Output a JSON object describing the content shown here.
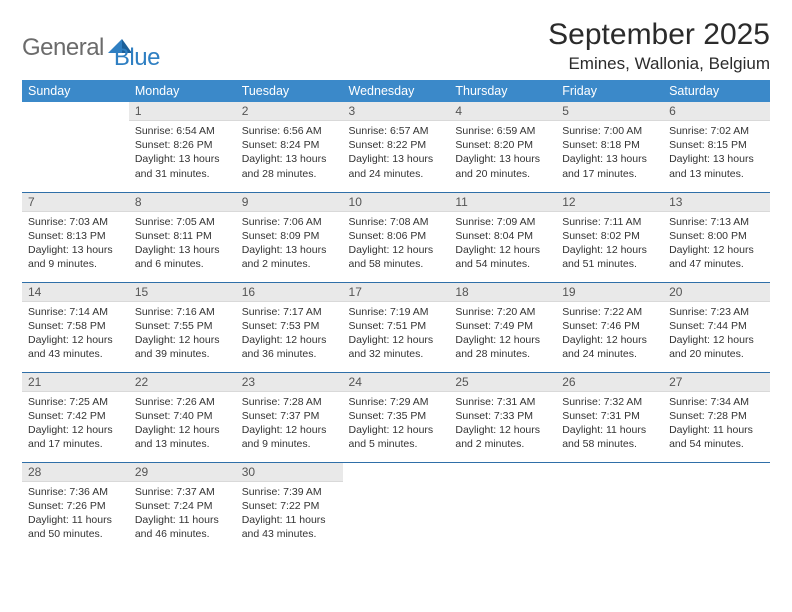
{
  "brand": {
    "name_gray": "General",
    "name_blue": "Blue"
  },
  "title": "September 2025",
  "location": "Emines, Wallonia, Belgium",
  "colors": {
    "header_bg": "#3b89c9",
    "header_text": "#ffffff",
    "daynum_bg": "#e9e9e9",
    "row_divider": "#2f6fa8",
    "logo_gray": "#6b6b6b",
    "logo_blue": "#2f7fc2"
  },
  "typography": {
    "title_fontsize": 30,
    "location_fontsize": 17,
    "header_fontsize": 12.5,
    "daynum_fontsize": 12,
    "body_fontsize": 10.5
  },
  "weekdays": [
    "Sunday",
    "Monday",
    "Tuesday",
    "Wednesday",
    "Thursday",
    "Friday",
    "Saturday"
  ],
  "weeks": [
    [
      null,
      {
        "n": "1",
        "sunrise": "6:54 AM",
        "sunset": "8:26 PM",
        "daylight": "13 hours and 31 minutes."
      },
      {
        "n": "2",
        "sunrise": "6:56 AM",
        "sunset": "8:24 PM",
        "daylight": "13 hours and 28 minutes."
      },
      {
        "n": "3",
        "sunrise": "6:57 AM",
        "sunset": "8:22 PM",
        "daylight": "13 hours and 24 minutes."
      },
      {
        "n": "4",
        "sunrise": "6:59 AM",
        "sunset": "8:20 PM",
        "daylight": "13 hours and 20 minutes."
      },
      {
        "n": "5",
        "sunrise": "7:00 AM",
        "sunset": "8:18 PM",
        "daylight": "13 hours and 17 minutes."
      },
      {
        "n": "6",
        "sunrise": "7:02 AM",
        "sunset": "8:15 PM",
        "daylight": "13 hours and 13 minutes."
      }
    ],
    [
      {
        "n": "7",
        "sunrise": "7:03 AM",
        "sunset": "8:13 PM",
        "daylight": "13 hours and 9 minutes."
      },
      {
        "n": "8",
        "sunrise": "7:05 AM",
        "sunset": "8:11 PM",
        "daylight": "13 hours and 6 minutes."
      },
      {
        "n": "9",
        "sunrise": "7:06 AM",
        "sunset": "8:09 PM",
        "daylight": "13 hours and 2 minutes."
      },
      {
        "n": "10",
        "sunrise": "7:08 AM",
        "sunset": "8:06 PM",
        "daylight": "12 hours and 58 minutes."
      },
      {
        "n": "11",
        "sunrise": "7:09 AM",
        "sunset": "8:04 PM",
        "daylight": "12 hours and 54 minutes."
      },
      {
        "n": "12",
        "sunrise": "7:11 AM",
        "sunset": "8:02 PM",
        "daylight": "12 hours and 51 minutes."
      },
      {
        "n": "13",
        "sunrise": "7:13 AM",
        "sunset": "8:00 PM",
        "daylight": "12 hours and 47 minutes."
      }
    ],
    [
      {
        "n": "14",
        "sunrise": "7:14 AM",
        "sunset": "7:58 PM",
        "daylight": "12 hours and 43 minutes."
      },
      {
        "n": "15",
        "sunrise": "7:16 AM",
        "sunset": "7:55 PM",
        "daylight": "12 hours and 39 minutes."
      },
      {
        "n": "16",
        "sunrise": "7:17 AM",
        "sunset": "7:53 PM",
        "daylight": "12 hours and 36 minutes."
      },
      {
        "n": "17",
        "sunrise": "7:19 AM",
        "sunset": "7:51 PM",
        "daylight": "12 hours and 32 minutes."
      },
      {
        "n": "18",
        "sunrise": "7:20 AM",
        "sunset": "7:49 PM",
        "daylight": "12 hours and 28 minutes."
      },
      {
        "n": "19",
        "sunrise": "7:22 AM",
        "sunset": "7:46 PM",
        "daylight": "12 hours and 24 minutes."
      },
      {
        "n": "20",
        "sunrise": "7:23 AM",
        "sunset": "7:44 PM",
        "daylight": "12 hours and 20 minutes."
      }
    ],
    [
      {
        "n": "21",
        "sunrise": "7:25 AM",
        "sunset": "7:42 PM",
        "daylight": "12 hours and 17 minutes."
      },
      {
        "n": "22",
        "sunrise": "7:26 AM",
        "sunset": "7:40 PM",
        "daylight": "12 hours and 13 minutes."
      },
      {
        "n": "23",
        "sunrise": "7:28 AM",
        "sunset": "7:37 PM",
        "daylight": "12 hours and 9 minutes."
      },
      {
        "n": "24",
        "sunrise": "7:29 AM",
        "sunset": "7:35 PM",
        "daylight": "12 hours and 5 minutes."
      },
      {
        "n": "25",
        "sunrise": "7:31 AM",
        "sunset": "7:33 PM",
        "daylight": "12 hours and 2 minutes."
      },
      {
        "n": "26",
        "sunrise": "7:32 AM",
        "sunset": "7:31 PM",
        "daylight": "11 hours and 58 minutes."
      },
      {
        "n": "27",
        "sunrise": "7:34 AM",
        "sunset": "7:28 PM",
        "daylight": "11 hours and 54 minutes."
      }
    ],
    [
      {
        "n": "28",
        "sunrise": "7:36 AM",
        "sunset": "7:26 PM",
        "daylight": "11 hours and 50 minutes."
      },
      {
        "n": "29",
        "sunrise": "7:37 AM",
        "sunset": "7:24 PM",
        "daylight": "11 hours and 46 minutes."
      },
      {
        "n": "30",
        "sunrise": "7:39 AM",
        "sunset": "7:22 PM",
        "daylight": "11 hours and 43 minutes."
      },
      null,
      null,
      null,
      null
    ]
  ],
  "labels": {
    "sunrise": "Sunrise:",
    "sunset": "Sunset:",
    "daylight": "Daylight:"
  }
}
